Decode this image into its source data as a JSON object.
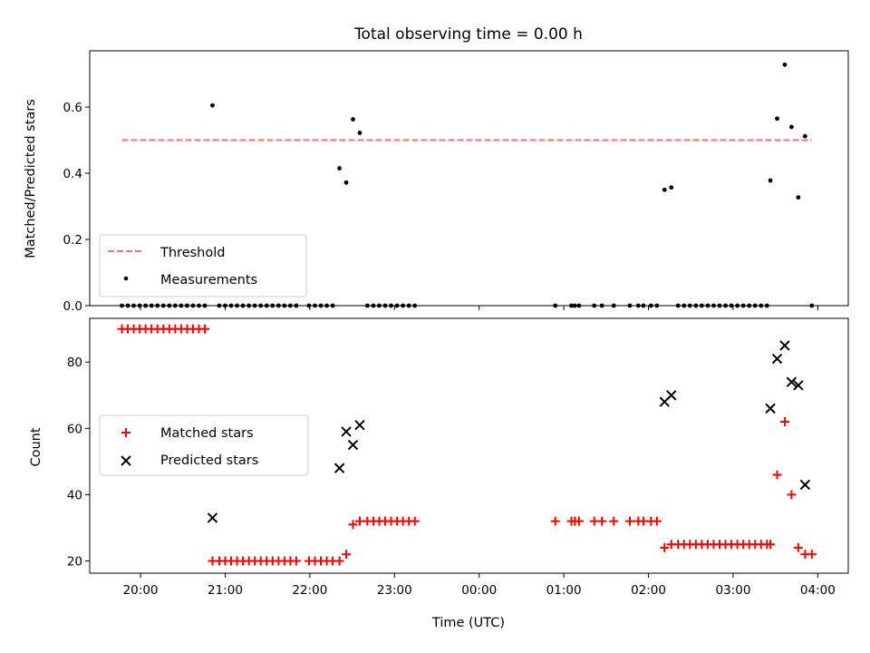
{
  "chart_data": [
    {
      "type": "scatter",
      "title": "Total observing time = 0.00 h",
      "ylabel": "Matched/Predicted stars",
      "xlabel": "",
      "ylim": [
        0,
        0.77
      ],
      "yticks": [
        0.0,
        0.2,
        0.4,
        0.6
      ],
      "ytick_labels": [
        "0.0",
        "0.2",
        "0.4",
        "0.6"
      ],
      "xticks_hours": [
        20,
        21,
        22,
        23,
        24,
        25,
        26,
        27,
        28
      ],
      "grid": false,
      "legend": "lower-left",
      "series": [
        {
          "name": "Threshold",
          "kind": "dashed-line",
          "color": "#ff7070",
          "x": [
            19.78,
            27.93
          ],
          "y": [
            0.5,
            0.5
          ]
        },
        {
          "name": "Measurements",
          "kind": "dot",
          "color": "#000000",
          "x": [
            19.78,
            19.85,
            19.92,
            19.99,
            20.06,
            20.13,
            20.2,
            20.27,
            20.34,
            20.41,
            20.48,
            20.55,
            20.62,
            20.69,
            20.76,
            20.85,
            20.93,
            21.0,
            21.07,
            21.14,
            21.21,
            21.28,
            21.35,
            21.42,
            21.49,
            21.56,
            21.63,
            21.7,
            21.77,
            21.84,
            21.99,
            22.06,
            22.13,
            22.2,
            22.27,
            22.35,
            22.43,
            22.51,
            22.59,
            22.68,
            22.75,
            22.82,
            22.89,
            22.96,
            23.03,
            23.1,
            23.17,
            23.24,
            24.9,
            25.09,
            25.13,
            25.18,
            25.36,
            25.45,
            25.59,
            25.78,
            25.88,
            25.94,
            26.03,
            26.1,
            26.19,
            26.27,
            26.35,
            26.42,
            26.49,
            26.56,
            26.63,
            26.7,
            26.77,
            26.84,
            26.91,
            26.98,
            27.05,
            27.12,
            27.19,
            27.26,
            27.33,
            27.4,
            27.44,
            27.52,
            27.61,
            27.69,
            27.77,
            27.85,
            27.93
          ],
          "y": [
            0,
            0,
            0,
            0,
            0,
            0,
            0,
            0,
            0,
            0,
            0,
            0,
            0,
            0,
            0,
            0.605,
            0,
            0,
            0,
            0,
            0,
            0,
            0,
            0,
            0,
            0,
            0,
            0,
            0,
            0,
            0,
            0,
            0,
            0,
            0,
            0.415,
            0.372,
            0.563,
            0.522,
            0,
            0,
            0,
            0,
            0,
            0,
            0,
            0,
            0,
            0,
            0,
            0,
            0,
            0,
            0,
            0,
            0,
            0,
            0,
            0,
            0,
            0.35,
            0.357,
            0,
            0,
            0,
            0,
            0,
            0,
            0,
            0,
            0,
            0,
            0,
            0,
            0,
            0,
            0,
            0,
            0.378,
            0.565,
            0.728,
            0.54,
            0.327,
            0.512,
            0
          ]
        }
      ]
    },
    {
      "type": "scatter",
      "title": "",
      "ylabel": "Count",
      "xlabel": "Time (UTC)",
      "ylim": [
        16.3,
        93.2
      ],
      "yticks": [
        20,
        40,
        60,
        80
      ],
      "ytick_labels": [
        "20",
        "40",
        "60",
        "80"
      ],
      "xticks_hours": [
        20,
        21,
        22,
        23,
        24,
        25,
        26,
        27,
        28
      ],
      "xtick_labels": [
        "20:00",
        "21:00",
        "22:00",
        "23:00",
        "00:00",
        "01:00",
        "02:00",
        "03:00",
        "04:00"
      ],
      "grid": false,
      "legend": "center-left",
      "series": [
        {
          "name": "Matched stars",
          "marker": "plus",
          "color": "#ff0000",
          "x": [
            19.78,
            19.85,
            19.92,
            19.99,
            20.06,
            20.13,
            20.2,
            20.27,
            20.34,
            20.41,
            20.48,
            20.55,
            20.62,
            20.69,
            20.76,
            20.85,
            20.93,
            21.0,
            21.07,
            21.14,
            21.21,
            21.28,
            21.35,
            21.42,
            21.49,
            21.56,
            21.63,
            21.7,
            21.77,
            21.84,
            21.99,
            22.06,
            22.13,
            22.2,
            22.27,
            22.35,
            22.43,
            22.51,
            22.59,
            22.68,
            22.75,
            22.82,
            22.89,
            22.96,
            23.03,
            23.1,
            23.17,
            23.24,
            24.9,
            25.09,
            25.13,
            25.18,
            25.36,
            25.45,
            25.59,
            25.78,
            25.88,
            25.94,
            26.03,
            26.1,
            26.19,
            26.27,
            26.35,
            26.42,
            26.49,
            26.56,
            26.63,
            26.7,
            26.77,
            26.84,
            26.91,
            26.98,
            27.05,
            27.12,
            27.19,
            27.26,
            27.33,
            27.4,
            27.44,
            27.52,
            27.61,
            27.69,
            27.77,
            27.85,
            27.93
          ],
          "y": [
            90,
            90,
            90,
            90,
            90,
            90,
            90,
            90,
            90,
            90,
            90,
            90,
            90,
            90,
            90,
            20,
            20,
            20,
            20,
            20,
            20,
            20,
            20,
            20,
            20,
            20,
            20,
            20,
            20,
            20,
            20,
            20,
            20,
            20,
            20,
            20,
            22,
            31,
            32,
            32,
            32,
            32,
            32,
            32,
            32,
            32,
            32,
            32,
            32,
            32,
            32,
            32,
            32,
            32,
            32,
            32,
            32,
            32,
            32,
            32,
            24,
            25,
            25,
            25,
            25,
            25,
            25,
            25,
            25,
            25,
            25,
            25,
            25,
            25,
            25,
            25,
            25,
            25,
            25,
            46,
            62,
            40,
            24,
            22,
            22
          ]
        },
        {
          "name": "Predicted stars",
          "marker": "x",
          "color": "#000000",
          "x": [
            20.85,
            22.35,
            22.43,
            22.51,
            22.59,
            26.19,
            26.27,
            27.44,
            27.52,
            27.61,
            27.69,
            27.77,
            27.85
          ],
          "y": [
            33,
            48,
            59,
            55,
            61,
            68,
            70,
            66,
            81,
            85,
            74,
            73,
            43
          ]
        }
      ]
    }
  ]
}
